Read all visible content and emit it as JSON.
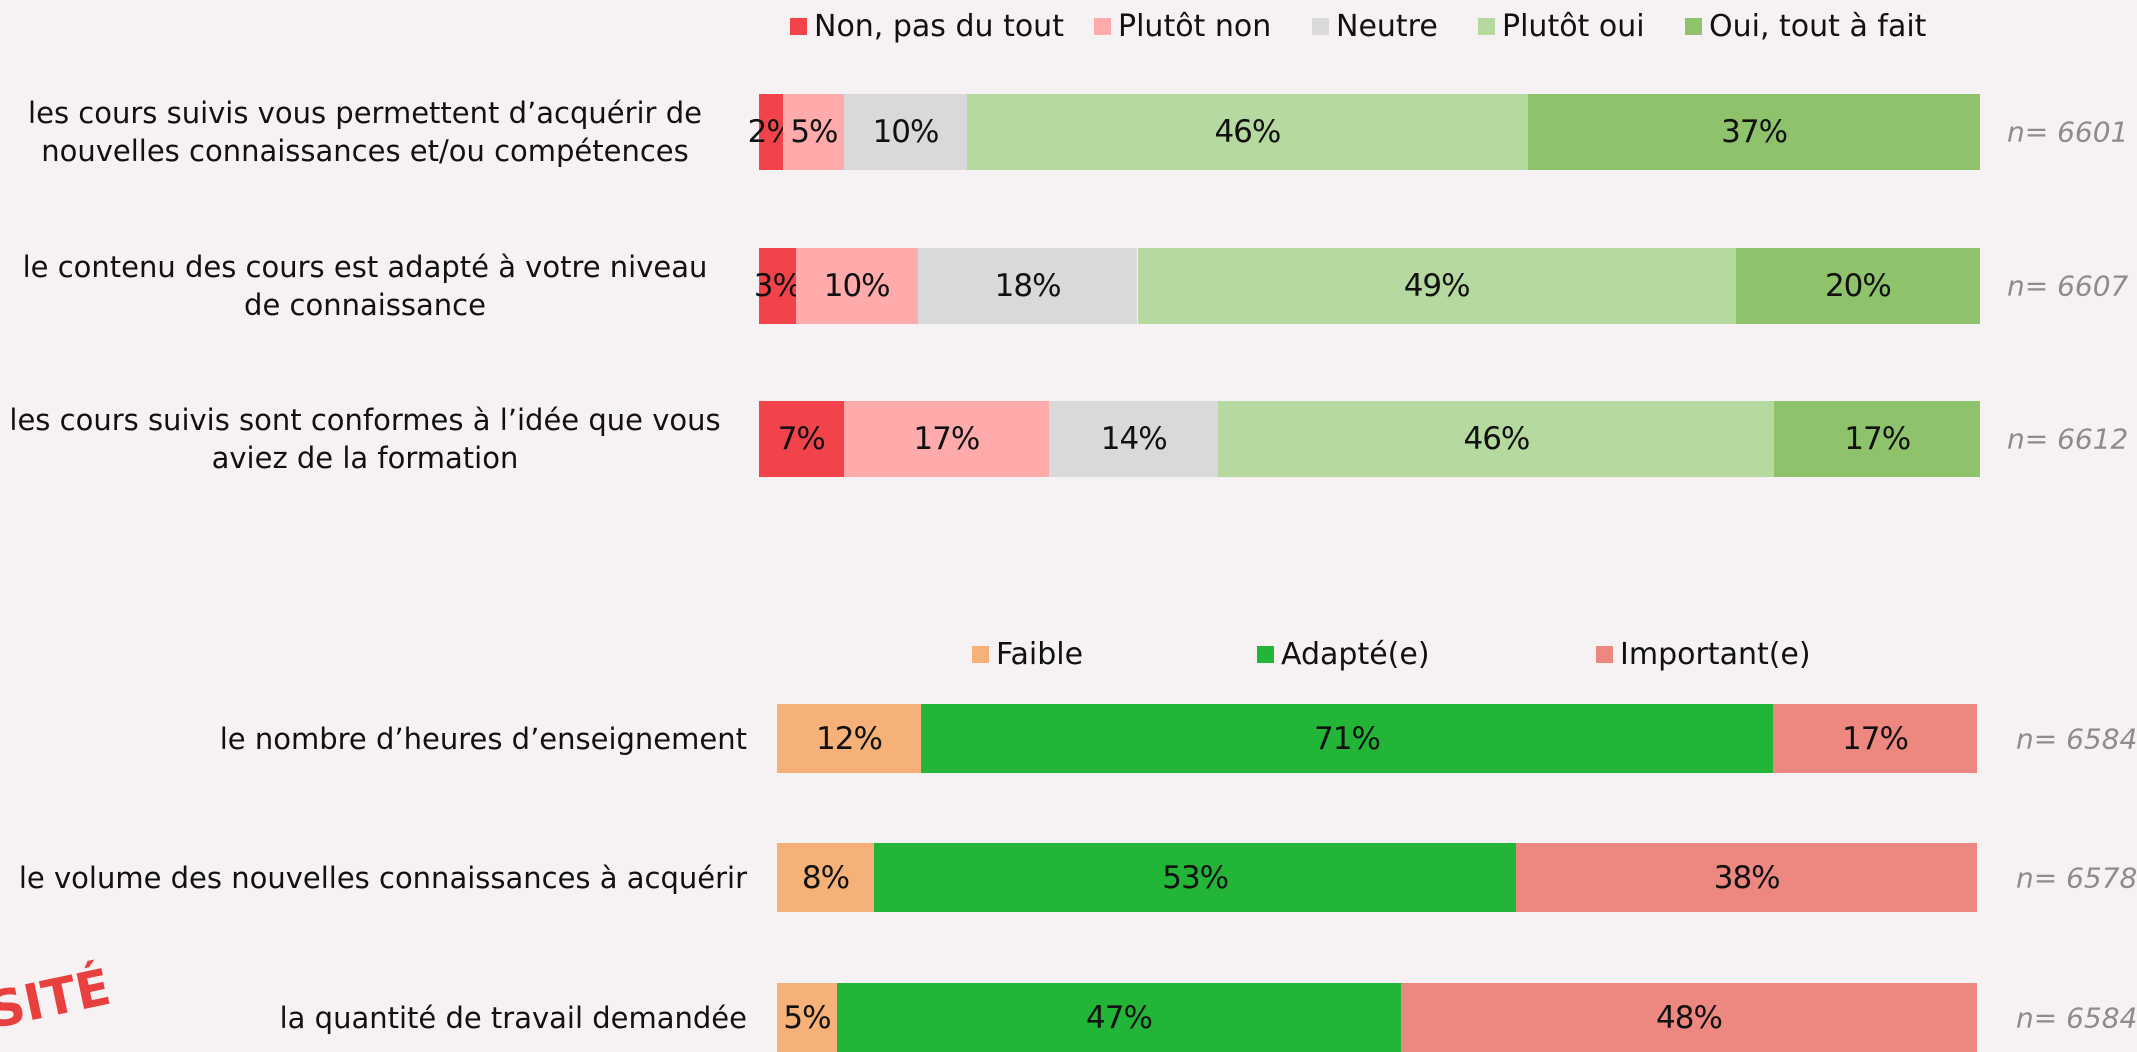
{
  "chart_data": [
    {
      "type": "bar",
      "orientation": "horizontal",
      "stacked": true,
      "categories": [
        "les cours suivis vous permettent d’acquérir de nouvelles connaissances et/ou compétences",
        "le contenu des cours est adapté à votre niveau de connaissance",
        "les cours suivis sont conformes à l’idée que vous aviez de la formation"
      ],
      "series": [
        {
          "name": "Non, pas du tout",
          "color": "#f2434a",
          "values": [
            2,
            3,
            7
          ],
          "value_labels": [
            "2%",
            "3%",
            "7%"
          ]
        },
        {
          "name": "Plutôt non",
          "color": "#ffabab",
          "values": [
            5,
            10,
            17
          ],
          "value_labels": [
            "5%",
            "10%",
            "17%"
          ]
        },
        {
          "name": "Neutre",
          "color": "#d9d9d9",
          "values": [
            10,
            18,
            14
          ],
          "value_labels": [
            "10%",
            "18%",
            "14%"
          ]
        },
        {
          "name": "Plutôt oui",
          "color": "#b5d99e",
          "values": [
            46,
            49,
            46
          ],
          "value_labels": [
            "46%",
            "49%",
            "46%"
          ]
        },
        {
          "name": "Oui, tout à fait",
          "color": "#8ec26b",
          "values": [
            37,
            20,
            17
          ],
          "value_labels": [
            "37%",
            "20%",
            "17%"
          ]
        }
      ],
      "annotations": [
        "n= 6601",
        "n= 6607",
        "n= 6612"
      ]
    },
    {
      "type": "bar",
      "orientation": "horizontal",
      "stacked": true,
      "categories": [
        "le nombre d’heures d’enseignement",
        "le volume des nouvelles connaissances à acquérir",
        "la quantité de travail demandée"
      ],
      "series": [
        {
          "name": "Faible",
          "color": "#f5b178",
          "values": [
            12,
            8,
            5
          ],
          "value_labels": [
            "12%",
            "8%",
            "5%"
          ]
        },
        {
          "name": "Adapté(e)",
          "color": "#22b537",
          "values": [
            71,
            53,
            47
          ],
          "value_labels": [
            "71%",
            "53%",
            "47%"
          ]
        },
        {
          "name": "Important(e)",
          "color": "#ec8880",
          "values": [
            17,
            38,
            48
          ],
          "value_labels": [
            "17%",
            "38%",
            "48%"
          ]
        }
      ],
      "annotations": [
        "n= 6584",
        "n= 6578",
        "n= 6584"
      ]
    }
  ],
  "logo_text": "SITÉ"
}
